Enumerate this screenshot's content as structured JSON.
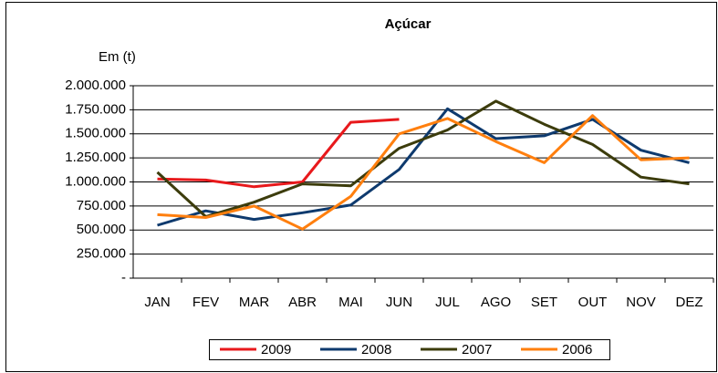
{
  "chart_data": {
    "type": "line",
    "title": "Açúcar",
    "y_label": "Em (t)",
    "categories": [
      "JAN",
      "FEV",
      "MAR",
      "ABR",
      "MAI",
      "JUN",
      "JUL",
      "AGO",
      "SET",
      "OUT",
      "NOV",
      "DEZ"
    ],
    "series": [
      {
        "name": "2009",
        "color": "#e8191c",
        "values": [
          1030000,
          1020000,
          950000,
          1000000,
          1620000,
          1650000,
          null,
          null,
          null,
          null,
          null,
          null
        ]
      },
      {
        "name": "2008",
        "color": "#0e3a6e",
        "values": [
          550000,
          700000,
          610000,
          680000,
          760000,
          1130000,
          1760000,
          1450000,
          1480000,
          1650000,
          1330000,
          1200000
        ]
      },
      {
        "name": "2007",
        "color": "#3c3c0c",
        "values": [
          1100000,
          640000,
          790000,
          980000,
          960000,
          1350000,
          1540000,
          1840000,
          1600000,
          1390000,
          1050000,
          980000
        ]
      },
      {
        "name": "2006",
        "color": "#ff7f0e",
        "values": [
          660000,
          630000,
          750000,
          510000,
          850000,
          1500000,
          1660000,
          1420000,
          1200000,
          1690000,
          1230000,
          1250000
        ]
      }
    ],
    "ylim": [
      0,
      2000000
    ],
    "yticks": [
      {
        "value": 0,
        "label": "-"
      },
      {
        "value": 250000,
        "label": "250.000"
      },
      {
        "value": 500000,
        "label": "500.000"
      },
      {
        "value": 750000,
        "label": "750.000"
      },
      {
        "value": 1000000,
        "label": "1.000.000"
      },
      {
        "value": 1250000,
        "label": "1.250.000"
      },
      {
        "value": 1500000,
        "label": "1.500.000"
      },
      {
        "value": 1750000,
        "label": "1.750.000"
      },
      {
        "value": 2000000,
        "label": "2.000.000"
      }
    ],
    "grid": true,
    "legend": "bottom"
  }
}
